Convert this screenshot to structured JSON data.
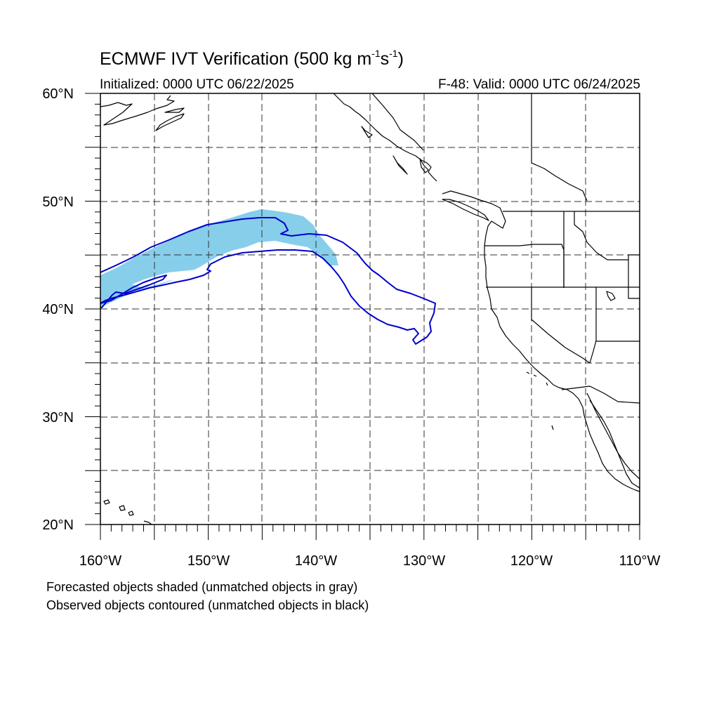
{
  "title": {
    "prefix": "ECMWF IVT Verification (500 kg m",
    "exp1": "-1",
    "mid": "s",
    "exp2": "-1",
    "suffix": ")"
  },
  "subtitle_left": "Initialized: 0000 UTC 06/22/2025",
  "subtitle_right": "F-48: Valid: 0000 UTC 06/24/2025",
  "map": {
    "lon_range": [
      -160,
      -110
    ],
    "lat_range": [
      20,
      60
    ],
    "lat_labels": [
      {
        "value": 60,
        "text": "60°N"
      },
      {
        "value": 50,
        "text": "50°N"
      },
      {
        "value": 40,
        "text": "40°N"
      },
      {
        "value": 30,
        "text": "30°N"
      },
      {
        "value": 20,
        "text": "20°N"
      }
    ],
    "lon_labels": [
      {
        "value": -160,
        "text": "160°W"
      },
      {
        "value": -150,
        "text": "150°W"
      },
      {
        "value": -140,
        "text": "140°W"
      },
      {
        "value": -130,
        "text": "130°W"
      },
      {
        "value": -120,
        "text": "120°W"
      },
      {
        "value": -110,
        "text": "110°W"
      }
    ],
    "grid_style": "dashed",
    "forecast_fill_color": "#87CEEB",
    "observed_contour_color": "#0000CC",
    "coast_color": "#000000"
  },
  "caption_line1": "Forecasted objects shaded (unmatched objects in gray)",
  "caption_line2": "Observed objects contoured (unmatched objects in black)"
}
